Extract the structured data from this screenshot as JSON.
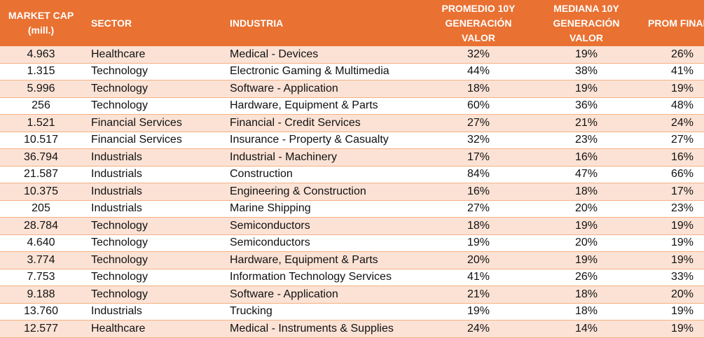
{
  "headers": {
    "market_cap": [
      "MARKET CAP",
      "(mill.)"
    ],
    "sector": "SECTOR",
    "industria": "INDUSTRIA",
    "promedio": [
      "PROMEDIO 10Y",
      "GENERACIÓN",
      "VALOR"
    ],
    "mediana": [
      "MEDIANA 10Y",
      "GENERACIÓN",
      "VALOR"
    ],
    "prom_final": "PROM FINAL"
  },
  "colors": {
    "header_bg": "#E97132",
    "band_bg": "#FBE2D5",
    "row_border": "#F4B183"
  },
  "rows": [
    [
      "4.963",
      "Healthcare",
      "Medical - Devices",
      "32%",
      "19%",
      "26%"
    ],
    [
      "1.315",
      "Technology",
      "Electronic Gaming & Multimedia",
      "44%",
      "38%",
      "41%"
    ],
    [
      "5.996",
      "Technology",
      "Software - Application",
      "18%",
      "19%",
      "19%"
    ],
    [
      "256",
      "Technology",
      "Hardware, Equipment & Parts",
      "60%",
      "36%",
      "48%"
    ],
    [
      "1.521",
      "Financial Services",
      "Financial - Credit Services",
      "27%",
      "21%",
      "24%"
    ],
    [
      "10.517",
      "Financial Services",
      "Insurance - Property & Casualty",
      "32%",
      "23%",
      "27%"
    ],
    [
      "36.794",
      "Industrials",
      "Industrial - Machinery",
      "17%",
      "16%",
      "16%"
    ],
    [
      "21.587",
      "Industrials",
      "Construction",
      "84%",
      "47%",
      "66%"
    ],
    [
      "10.375",
      "Industrials",
      "Engineering & Construction",
      "16%",
      "18%",
      "17%"
    ],
    [
      "205",
      "Industrials",
      "Marine Shipping",
      "27%",
      "20%",
      "23%"
    ],
    [
      "28.784",
      "Technology",
      "Semiconductors",
      "18%",
      "19%",
      "19%"
    ],
    [
      "4.640",
      "Technology",
      "Semiconductors",
      "19%",
      "20%",
      "19%"
    ],
    [
      "3.774",
      "Technology",
      "Hardware, Equipment & Parts",
      "20%",
      "19%",
      "19%"
    ],
    [
      "7.753",
      "Technology",
      "Information Technology Services",
      "41%",
      "26%",
      "33%"
    ],
    [
      "9.188",
      "Technology",
      "Software - Application",
      "21%",
      "18%",
      "20%"
    ],
    [
      "13.760",
      "Industrials",
      "Trucking",
      "19%",
      "18%",
      "19%"
    ],
    [
      "12.577",
      "Healthcare",
      "Medical - Instruments & Supplies",
      "24%",
      "14%",
      "19%"
    ]
  ]
}
